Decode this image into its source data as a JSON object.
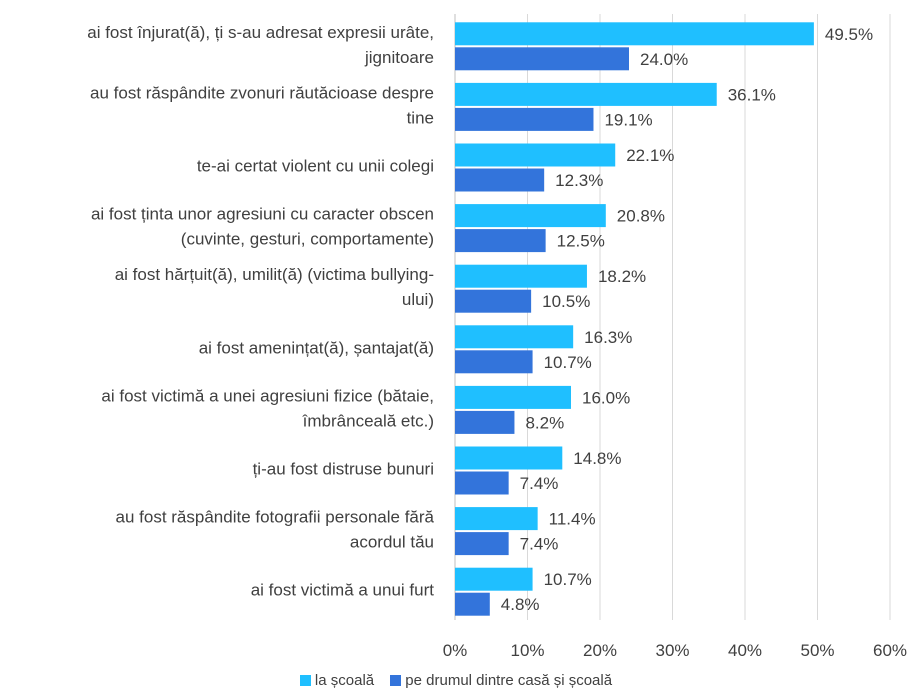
{
  "chart_data": {
    "type": "bar",
    "orientation": "horizontal",
    "categories": [
      [
        "ai fost înjurat(ă), ți s-au adresat expresii urâte,",
        "jignitoare"
      ],
      [
        "au fost răspândite zvonuri răutăcioase despre",
        "tine"
      ],
      [
        "te-ai certat violent cu unii colegi"
      ],
      [
        "ai fost ținta unor agresiuni cu caracter obscen",
        "(cuvinte, gesturi, comportamente)"
      ],
      [
        "ai fost hărțuit(ă), umilit(ă) (victima bullying-",
        "ului)"
      ],
      [
        "ai fost amenințat(ă), șantajat(ă)"
      ],
      [
        "ai fost victimă a unei agresiuni fizice (bătaie,",
        "îmbrânceală etc.)"
      ],
      [
        "ți-au fost distruse bunuri"
      ],
      [
        "au fost răspândite fotografii personale fără",
        "acordul tău"
      ],
      [
        "ai fost victimă a unui furt"
      ]
    ],
    "series": [
      {
        "name": "la școală",
        "color": "#1fbfff",
        "values": [
          49.5,
          36.1,
          22.1,
          20.8,
          18.2,
          16.3,
          16.0,
          14.8,
          11.4,
          10.7
        ],
        "labels": [
          "49.5%",
          "36.1%",
          "22.1%",
          "20.8%",
          "18.2%",
          "16.3%",
          "16.0%",
          "14.8%",
          "11.4%",
          "10.7%"
        ]
      },
      {
        "name": "pe drumul dintre casă și școală",
        "color": "#3374db",
        "values": [
          24.0,
          19.1,
          12.3,
          12.5,
          10.5,
          10.7,
          8.2,
          7.4,
          7.4,
          4.8
        ],
        "labels": [
          "24.0%",
          "19.1%",
          "12.3%",
          "12.5%",
          "10.5%",
          "10.7%",
          "8.2%",
          "7.4%",
          "7.4%",
          "4.8%"
        ]
      }
    ],
    "xlim": [
      0,
      60
    ],
    "ticks": [
      0,
      10,
      20,
      30,
      40,
      50,
      60
    ],
    "tick_labels": [
      "0%",
      "10%",
      "20%",
      "30%",
      "40%",
      "50%",
      "60%"
    ],
    "grid": true,
    "legend_position": "bottom"
  }
}
